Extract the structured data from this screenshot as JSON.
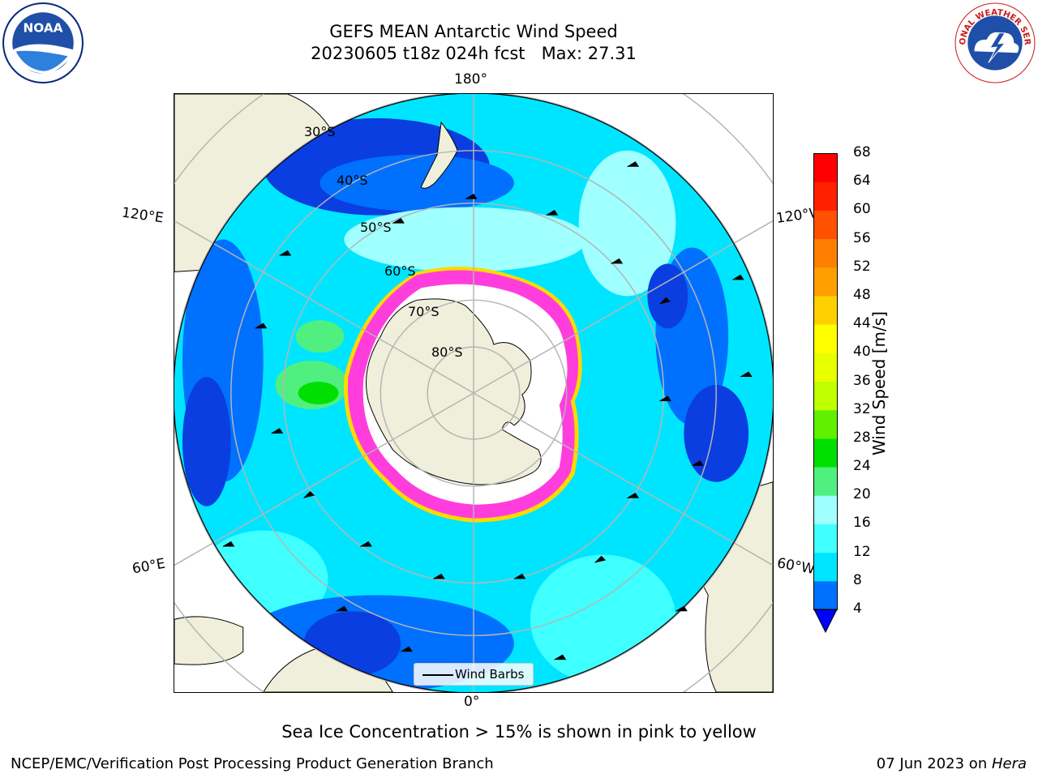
{
  "header": {
    "title_line1": "GEFS MEAN Antarctic Wind Speed",
    "title_line2": "20230605 t18z 024h fcst   Max: 27.31"
  },
  "logos": {
    "left": "NOAA",
    "right": "NATIONAL WEATHER SERVICE"
  },
  "map": {
    "projection": "south-polar-stereographic",
    "lon_labels": {
      "top": "180°",
      "bottom": "0°",
      "upper_left": "120°E",
      "lower_left": "60°E",
      "upper_right": "120°W",
      "lower_right": "60°W"
    },
    "lat_labels": [
      "30°S",
      "40°S",
      "50°S",
      "60°S",
      "70°S",
      "80°S"
    ],
    "legend": {
      "wind_barbs": "Wind Barbs"
    },
    "colors": {
      "land": "#efefdb",
      "ocean_low": "#0a3ee0",
      "ocean_mid": "#00e5ff",
      "ocean_high": "#2bff9a",
      "sea_ice": "#ff3ddc",
      "ice_edge": "#ffd900",
      "ice_shelf": "#ffffff"
    }
  },
  "colorbar": {
    "label": "Wind Speed [m/s]",
    "ticks": [
      "4",
      "8",
      "12",
      "16",
      "20",
      "24",
      "28",
      "32",
      "36",
      "40",
      "44",
      "48",
      "52",
      "56",
      "60",
      "64",
      "68"
    ],
    "colors": [
      "#0000ff",
      "#0070ff",
      "#00e5ff",
      "#40ffff",
      "#a0ffff",
      "#50f080",
      "#00e000",
      "#60f000",
      "#c0ff00",
      "#e8ff00",
      "#ffff00",
      "#ffd000",
      "#ffa000",
      "#ff8000",
      "#ff5000",
      "#ff2000",
      "#ff0000"
    ],
    "extend": "min"
  },
  "caption": "Sea Ice Concentration > 15% is shown in pink to yellow",
  "footer": {
    "left": "NCEP/EMC/Verification Post Processing Product Generation Branch",
    "right_date": "07 Jun 2023 on ",
    "right_host": "Hera"
  }
}
